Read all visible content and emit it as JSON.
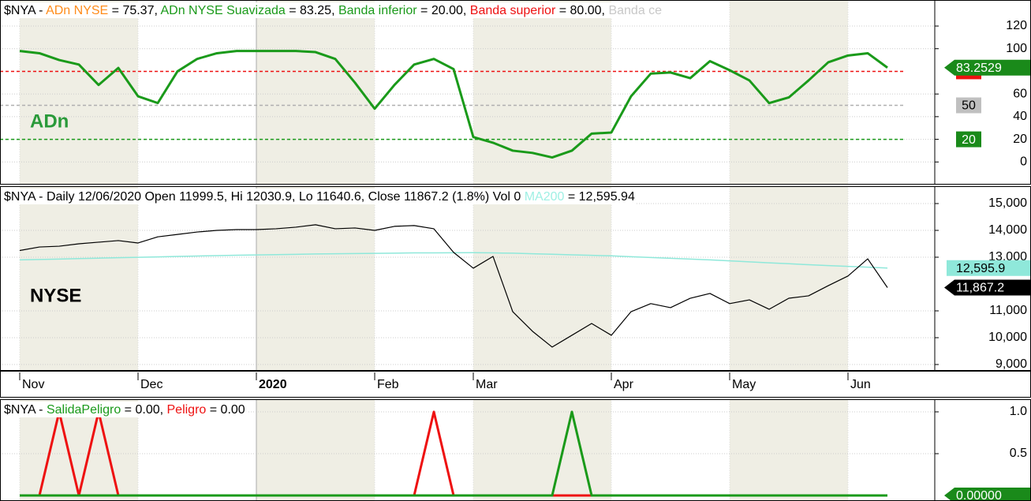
{
  "chart_data": [
    {
      "type": "line",
      "header": [
        {
          "text": "$NYA - ",
          "color": "#000000"
        },
        {
          "text": "ADn NYSE",
          "color": "#ff8c1a"
        },
        {
          "text": " = 75.37, ",
          "color": "#000000"
        },
        {
          "text": "ADn NYSE Suavizada",
          "color": "#1a9a1a"
        },
        {
          "text": " = 83.25, ",
          "color": "#000000"
        },
        {
          "text": "Banda inferior",
          "color": "#1a9a1a"
        },
        {
          "text": " = 20.00, ",
          "color": "#000000"
        },
        {
          "text": "Banda superior",
          "color": "#ee1111"
        },
        {
          "text": " = 80.00, ",
          "color": "#000000"
        },
        {
          "text": "Banda ce",
          "color": "#c8c8c8"
        }
      ],
      "label": "ADn",
      "label_color": "#2a9a3a",
      "series": [
        {
          "name": "ADn NYSE Suavizada",
          "color": "#1a9a1a",
          "width": 3,
          "values": [
            98,
            96,
            90,
            86,
            68,
            83,
            58,
            52,
            80,
            91,
            96,
            98,
            98,
            98,
            98,
            97,
            91,
            70,
            47,
            68,
            86,
            91,
            82,
            22,
            17,
            10,
            8,
            4,
            10,
            25,
            26,
            58,
            78,
            79,
            74,
            89,
            81,
            72,
            52,
            57,
            72,
            88,
            94,
            96,
            83.2529
          ],
          "last_label": "83.2529",
          "badge_color": "#1a8a1a",
          "badge_text": "#ffffff"
        }
      ],
      "bands": [
        {
          "value": 80,
          "color": "#ee1111",
          "badge": "#ee1111",
          "badge_text": "#ffffff"
        },
        {
          "value": 50,
          "color": "#b0b0b0",
          "badge": "#c0c0c0",
          "badge_text": "#000000"
        },
        {
          "value": 20,
          "color": "#1a9a1a",
          "badge": "#1a8a1a",
          "badge_text": "#ffffff"
        }
      ],
      "ylim": [
        -20,
        143
      ],
      "yticks": [
        0,
        20,
        40,
        60,
        100,
        120
      ]
    },
    {
      "type": "line",
      "header": [
        {
          "text": "$NYA - Daily 12/06/2020 Open 11999.5, Hi 12030.9, Lo 11640.6, Close 11867.2 (1.8%) Vol 0 ",
          "color": "#000000"
        },
        {
          "text": "MA200",
          "color": "#9ff0e4"
        },
        {
          "text": " = 12,595.94",
          "color": "#000000"
        }
      ],
      "label": "NYSE",
      "label_color": "#000000",
      "categories": [
        "Nov",
        null,
        null,
        null,
        null,
        null,
        "Dec",
        null,
        null,
        null,
        null,
        null,
        "2020",
        null,
        null,
        null,
        null,
        null,
        "Feb",
        null,
        null,
        null,
        null,
        "Mar",
        null,
        null,
        null,
        null,
        null,
        null,
        "Apr",
        null,
        null,
        null,
        null,
        null,
        "May",
        null,
        null,
        null,
        null,
        null,
        "Jun",
        null,
        null
      ],
      "series": [
        {
          "name": "MA200",
          "color": "#8fe8da",
          "width": 1.5,
          "values": [
            12900,
            12916,
            12932,
            12948,
            12964,
            12980,
            12996,
            13012,
            13028,
            13044,
            13060,
            13072,
            13084,
            13096,
            13108,
            13120,
            13128,
            13136,
            13144,
            13152,
            13160,
            13163,
            13167,
            13170,
            13160,
            13150,
            13130,
            13110,
            13090,
            13070,
            13050,
            13020,
            12990,
            12960,
            12930,
            12900,
            12864,
            12828,
            12792,
            12756,
            12720,
            12689,
            12658,
            12627,
            12595.94
          ],
          "last_label": "12,595.9",
          "badge_color": "#8fe8da",
          "badge_text": "#000000"
        },
        {
          "color": "#000000",
          "width": 1.2,
          "values": [
            13250,
            13380,
            13410,
            13500,
            13560,
            13620,
            13530,
            13760,
            13850,
            13940,
            14000,
            14030,
            14030,
            14060,
            14120,
            14210,
            14060,
            14090,
            14000,
            14150,
            14180,
            14060,
            13180,
            12590,
            13030,
            10970,
            10240,
            9650,
            10090,
            10530,
            10090,
            10970,
            11270,
            11120,
            11470,
            11650,
            11270,
            11410,
            11060,
            11470,
            11560,
            11940,
            12300,
            12940,
            11867.2
          ],
          "last_label": "11,867.2",
          "badge_color": "#000000",
          "badge_text": "#ffffff"
        }
      ],
      "ylim": [
        8765,
        15647
      ],
      "yticks": [
        {
          "value": 9000,
          "label": "9,000"
        },
        {
          "value": 10000,
          "label": "10,000"
        },
        {
          "value": 11000,
          "label": "11,000"
        },
        {
          "value": 13000,
          "label": "13,000"
        },
        {
          "value": 14000,
          "label": "14,000"
        },
        {
          "value": 15000,
          "label": "15,000"
        }
      ]
    },
    {
      "type": "line",
      "header": [
        {
          "text": "$NYA - ",
          "color": "#000000"
        },
        {
          "text": "SalidaPeligro",
          "color": "#1a9a1a"
        },
        {
          "text": " = 0.00, ",
          "color": "#000000"
        },
        {
          "text": "Peligro",
          "color": "#ee1111"
        },
        {
          "text": " = 0.00",
          "color": "#000000"
        }
      ],
      "series": [
        {
          "name": "Peligro",
          "color": "#ee1111",
          "width": 3,
          "values": [
            0,
            0,
            1,
            0,
            1,
            0,
            0,
            0,
            0,
            0,
            0,
            0,
            0,
            0,
            0,
            0,
            0,
            0,
            0,
            0,
            0,
            1,
            0,
            0,
            0,
            0,
            0,
            0,
            0,
            0,
            0,
            0,
            0,
            0,
            0,
            0,
            0,
            0,
            0,
            0,
            0,
            0,
            0,
            0,
            0
          ]
        },
        {
          "name": "SalidaPeligro",
          "color": "#1a9a1a",
          "width": 3,
          "values": [
            0,
            0,
            0,
            0,
            0,
            0,
            0,
            0,
            0,
            0,
            0,
            0,
            0,
            0,
            0,
            0,
            0,
            0,
            0,
            0,
            0,
            0,
            0,
            0,
            0,
            0,
            0,
            0,
            1,
            0,
            0,
            0,
            0,
            0,
            0,
            0,
            0,
            0,
            0,
            0,
            0,
            0,
            0,
            0,
            0
          ],
          "last_label": "0.00000",
          "badge_color": "#1a8a1a",
          "badge_text": "#ffffff"
        }
      ],
      "ylim": [
        -0.066,
        1.151
      ],
      "yticks": [
        0.5,
        {
          "value": 1,
          "label": "1.0"
        }
      ]
    }
  ]
}
